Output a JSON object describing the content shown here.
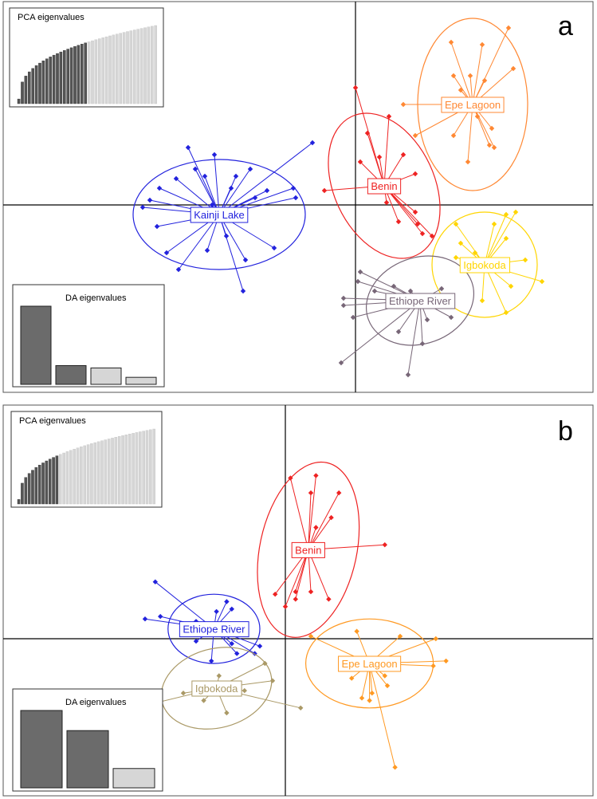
{
  "chart_data": [
    {
      "type": "scatter",
      "panel_label": "a",
      "axes": {
        "x_zero_line": true,
        "y_zero_line": true,
        "grid": false
      },
      "xlim": [
        -10,
        10
      ],
      "ylim": [
        -8,
        8
      ],
      "pca_inset": {
        "title": "PCA eigenvalues",
        "retained": 20,
        "total": 40,
        "position": "top-left"
      },
      "da_inset": {
        "title": "DA eigenvalues",
        "values": [
          100,
          24,
          21,
          9
        ],
        "retained": 2,
        "position": "bottom-left"
      },
      "groups": [
        {
          "name": "Kainji Lake",
          "color": "#2222dd",
          "center": [
            -5.7,
            -0.4
          ],
          "ellipse": {
            "rx": 3.6,
            "ry": 2.3,
            "angle": 0
          },
          "points": [
            [
              -7.0,
              2.4
            ],
            [
              -6.3,
              1.2
            ],
            [
              -5.9,
              2.1
            ],
            [
              -5.0,
              1.2
            ],
            [
              -4.4,
              1.5
            ],
            [
              -7.5,
              1.1
            ],
            [
              -8.2,
              0.7
            ],
            [
              -8.6,
              0.2
            ],
            [
              -8.3,
              -0.9
            ],
            [
              -7.9,
              -2.0
            ],
            [
              -7.4,
              -2.7
            ],
            [
              -6.2,
              -1.9
            ],
            [
              -5.4,
              -1.3
            ],
            [
              -4.6,
              -2.3
            ],
            [
              -3.4,
              -1.8
            ],
            [
              -3.7,
              0.6
            ],
            [
              -2.6,
              0.7
            ],
            [
              -2.5,
              0.3
            ],
            [
              -1.8,
              2.6
            ],
            [
              -4.7,
              -3.6
            ],
            [
              -6.7,
              1.5
            ],
            [
              -5.2,
              0.7
            ],
            [
              -4.2,
              0.3
            ],
            [
              -6.0,
              0.0
            ],
            [
              -8.9,
              -0.1
            ]
          ]
        },
        {
          "name": "Benin",
          "color": "#ee2222",
          "center": [
            1.2,
            0.8
          ],
          "ellipse": {
            "rx": 2.1,
            "ry": 3.2,
            "angle": -25
          },
          "points": [
            [
              0.0,
              4.9
            ],
            [
              1.4,
              3.7
            ],
            [
              0.2,
              1.8
            ],
            [
              1.0,
              2.0
            ],
            [
              2.0,
              2.1
            ],
            [
              2.5,
              1.3
            ],
            [
              -1.3,
              0.6
            ],
            [
              2.5,
              -0.3
            ],
            [
              1.8,
              -0.7
            ],
            [
              2.6,
              -0.8
            ],
            [
              2.8,
              -1.2
            ],
            [
              1.3,
              0.1
            ],
            [
              3.2,
              -1.3
            ],
            [
              0.5,
              3.0
            ]
          ]
        },
        {
          "name": "Epe Lagoon",
          "color": "#ff8833",
          "center": [
            4.9,
            4.2
          ],
          "ellipse": {
            "rx": 2.3,
            "ry": 3.6,
            "angle": 0
          },
          "points": [
            [
              2.0,
              4.2
            ],
            [
              4.0,
              6.8
            ],
            [
              5.3,
              6.7
            ],
            [
              6.4,
              7.4
            ],
            [
              6.6,
              5.7
            ],
            [
              4.1,
              5.4
            ],
            [
              4.8,
              5.4
            ],
            [
              5.4,
              5.2
            ],
            [
              4.4,
              4.8
            ],
            [
              4.6,
              4.0
            ],
            [
              5.1,
              3.7
            ],
            [
              5.7,
              3.2
            ],
            [
              5.6,
              2.5
            ],
            [
              4.7,
              1.8
            ],
            [
              2.5,
              2.9
            ],
            [
              4.1,
              2.9
            ],
            [
              5.8,
              2.4
            ]
          ]
        },
        {
          "name": "Igbokoda",
          "color": "#ffd500",
          "center": [
            5.4,
            -2.5
          ],
          "ellipse": {
            "rx": 2.2,
            "ry": 2.2,
            "angle": 0
          },
          "points": [
            [
              5.8,
              -0.8
            ],
            [
              6.3,
              -0.4
            ],
            [
              6.7,
              -0.3
            ],
            [
              4.2,
              -0.8
            ],
            [
              6.3,
              -1.4
            ],
            [
              7.1,
              -2.3
            ],
            [
              7.8,
              -3.2
            ],
            [
              6.5,
              -3.4
            ],
            [
              6.3,
              -4.5
            ],
            [
              5.0,
              -2.0
            ],
            [
              4.4,
              -1.6
            ],
            [
              5.3,
              -4.0
            ],
            [
              4.2,
              -2.2
            ]
          ]
        },
        {
          "name": "Ethiope River",
          "color": "#776677",
          "center": [
            2.7,
            -4.0
          ],
          "ellipse": {
            "rx": 2.3,
            "ry": 1.8,
            "angle": -20
          },
          "points": [
            [
              0.2,
              -2.8
            ],
            [
              -0.5,
              -3.9
            ],
            [
              -0.5,
              -4.2
            ],
            [
              0.1,
              -3.2
            ],
            [
              -0.1,
              -4.7
            ],
            [
              0.8,
              -3.6
            ],
            [
              1.6,
              -3.4
            ],
            [
              2.3,
              -3.6
            ],
            [
              3.6,
              -3.5
            ],
            [
              3.0,
              -4.8
            ],
            [
              2.8,
              -5.8
            ],
            [
              1.8,
              -5.3
            ],
            [
              4.0,
              -4.7
            ],
            [
              -0.6,
              -6.6
            ],
            [
              2.2,
              -7.1
            ]
          ]
        }
      ]
    },
    {
      "type": "scatter",
      "panel_label": "b",
      "axes": {
        "x_zero_line": true,
        "y_zero_line": true,
        "grid": false
      },
      "xlim": [
        -10,
        10
      ],
      "ylim": [
        -8,
        8
      ],
      "pca_inset": {
        "title": "PCA eigenvalues",
        "retained": 12,
        "total": 40,
        "position": "top-left"
      },
      "da_inset": {
        "title": "DA eigenvalues",
        "values": [
          100,
          74,
          25
        ],
        "retained": 2,
        "position": "bottom-left"
      },
      "groups": [
        {
          "name": "Benin",
          "color": "#ee2222",
          "center": [
            0.9,
            3.6
          ],
          "ellipse": {
            "rx": 1.9,
            "ry": 3.6,
            "angle": 12
          },
          "points": [
            [
              0.2,
              6.5
            ],
            [
              1.2,
              6.6
            ],
            [
              1.0,
              5.9
            ],
            [
              2.1,
              5.9
            ],
            [
              1.8,
              4.9
            ],
            [
              1.2,
              4.5
            ],
            [
              3.9,
              3.8
            ],
            [
              0.4,
              1.6
            ],
            [
              0.0,
              1.3
            ],
            [
              1.0,
              1.9
            ],
            [
              0.4,
              1.9
            ],
            [
              -0.4,
              1.8
            ],
            [
              1.7,
              1.6
            ]
          ]
        },
        {
          "name": "Ethiope River",
          "color": "#2222dd",
          "center": [
            -2.8,
            0.4
          ],
          "ellipse": {
            "rx": 1.8,
            "ry": 1.4,
            "angle": 0
          },
          "points": [
            [
              -5.1,
              2.3
            ],
            [
              -4.9,
              0.9
            ],
            [
              -5.5,
              0.8
            ],
            [
              -3.5,
              0.7
            ],
            [
              -2.3,
              1.5
            ],
            [
              -2.1,
              1.2
            ],
            [
              -2.7,
              1.1
            ],
            [
              -3.5,
              -0.1
            ],
            [
              -2.1,
              -0.2
            ],
            [
              -2.4,
              0.3
            ],
            [
              -1.0,
              -0.3
            ],
            [
              -1.2,
              -0.6
            ],
            [
              -1.9,
              -0.6
            ],
            [
              -2.9,
              -0.9
            ]
          ]
        },
        {
          "name": "Epe Lagoon",
          "color": "#ff9922",
          "center": [
            3.3,
            -1.0
          ],
          "ellipse": {
            "rx": 2.5,
            "ry": 1.8,
            "angle": 0
          },
          "points": [
            [
              1.0,
              0.1
            ],
            [
              2.8,
              0.3
            ],
            [
              4.5,
              0.1
            ],
            [
              5.9,
              0.0
            ],
            [
              6.3,
              -0.9
            ],
            [
              5.8,
              -1.1
            ],
            [
              3.9,
              -1.5
            ],
            [
              3.4,
              -2.2
            ],
            [
              4.0,
              -1.9
            ],
            [
              3.0,
              -2.4
            ],
            [
              4.3,
              -5.2
            ],
            [
              2.6,
              -1.6
            ],
            [
              3.3,
              -2.5
            ]
          ]
        },
        {
          "name": "Igbokoda",
          "color": "#aa9966",
          "center": [
            -2.7,
            -2.0
          ],
          "ellipse": {
            "rx": 2.2,
            "ry": 1.6,
            "angle": -15
          },
          "points": [
            [
              -8.7,
              -3.5
            ],
            [
              -1.6,
              -2.1
            ],
            [
              -0.8,
              -1.0
            ],
            [
              -0.5,
              -1.7
            ],
            [
              -1.8,
              -1.9
            ],
            [
              -3.4,
              -1.8
            ],
            [
              -3.2,
              -2.5
            ],
            [
              -4.0,
              -2.2
            ],
            [
              -2.3,
              -3.0
            ],
            [
              0.6,
              -2.8
            ],
            [
              -2.6,
              -1.5
            ]
          ]
        }
      ]
    }
  ]
}
